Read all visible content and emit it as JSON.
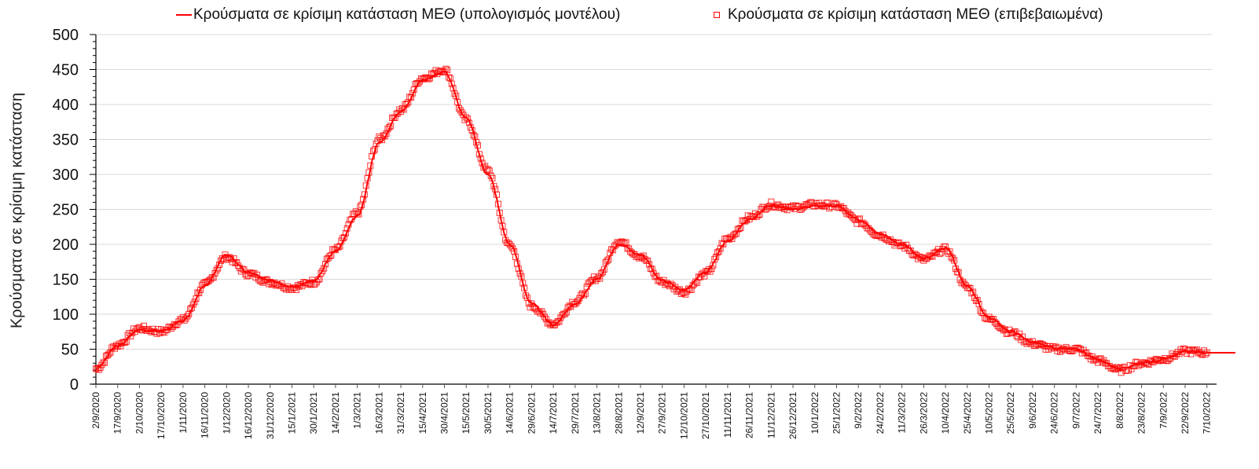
{
  "chart_data": {
    "type": "line",
    "title": "",
    "xlabel": "",
    "ylabel": "Κρούσματα σε κρίσιμη κατάσταση",
    "ylim": [
      0,
      500
    ],
    "yticks": [
      0,
      50,
      100,
      150,
      200,
      250,
      300,
      350,
      400,
      450,
      500
    ],
    "grid": true,
    "legend_position": "top",
    "categories": [
      "2/9/2020",
      "17/9/2020",
      "2/10/2020",
      "17/10/2020",
      "1/11/2020",
      "16/11/2020",
      "1/12/2020",
      "16/12/2020",
      "31/12/2020",
      "15/1/2021",
      "30/1/2021",
      "14/2/2021",
      "1/3/2021",
      "16/3/2021",
      "31/3/2021",
      "15/4/2021",
      "30/4/2021",
      "15/5/2021",
      "30/5/2021",
      "14/6/2021",
      "29/6/2021",
      "14/7/2021",
      "29/7/2021",
      "13/8/2021",
      "28/8/2021",
      "12/9/2021",
      "27/9/2021",
      "12/10/2021",
      "27/10/2021",
      "11/11/2021",
      "26/11/2021",
      "11/12/2021",
      "26/12/2021",
      "10/1/2022",
      "25/1/2022",
      "9/2/2022",
      "24/2/2022",
      "11/3/2022",
      "26/3/2022",
      "10/4/2022",
      "25/4/2022",
      "10/5/2022",
      "25/5/2022",
      "9/6/2022",
      "24/6/2022",
      "9/7/2022",
      "24/7/2022",
      "8/8/2022",
      "23/8/2022",
      "7/9/2022",
      "22/9/2022",
      "7/10/2022"
    ],
    "series": [
      {
        "name": "Κρούσματα σε κρίσιμη κατάσταση ΜΕΘ (υπολογισμός μοντέλου)",
        "style": "line",
        "color": "#ff0000",
        "values": [
          22,
          55,
          78,
          76,
          90,
          140,
          185,
          160,
          148,
          140,
          148,
          190,
          240,
          345,
          390,
          435,
          447,
          380,
          300,
          200,
          115,
          85,
          115,
          150,
          200,
          185,
          148,
          135,
          160,
          205,
          235,
          255,
          250,
          255,
          255,
          235,
          215,
          200,
          180,
          195,
          140,
          95,
          75,
          60,
          52,
          50,
          35,
          22,
          30,
          35,
          47,
          45
        ]
      },
      {
        "name": "Κρούσματα σε κρίσιμη κατάσταση ΜΕΘ (επιβεβαιωμένα)",
        "style": "markers-square",
        "color": "#ff0000",
        "values": [
          22,
          56,
          80,
          75,
          92,
          142,
          182,
          158,
          146,
          138,
          146,
          192,
          245,
          350,
          392,
          438,
          450,
          378,
          305,
          198,
          112,
          86,
          118,
          152,
          205,
          183,
          146,
          132,
          158,
          208,
          238,
          257,
          252,
          257,
          255,
          233,
          213,
          198,
          178,
          193,
          138,
          93,
          74,
          58,
          50,
          50,
          34,
          20,
          30,
          36,
          47,
          45
        ]
      }
    ]
  },
  "legend": {
    "model_label": "Κρούσματα σε κρίσιμη κατάσταση ΜΕΘ (υπολογισμός μοντέλου)",
    "confirmed_label": "Κρούσματα σε κρίσιμη κατάσταση ΜΕΘ (επιβεβαιωμένα)"
  },
  "axis": {
    "ylabel": "Κρούσματα σε κρίσιμη κατάσταση"
  },
  "colors": {
    "series": "#ff0000",
    "grid": "#d9d9d9",
    "axis": "#000000"
  }
}
